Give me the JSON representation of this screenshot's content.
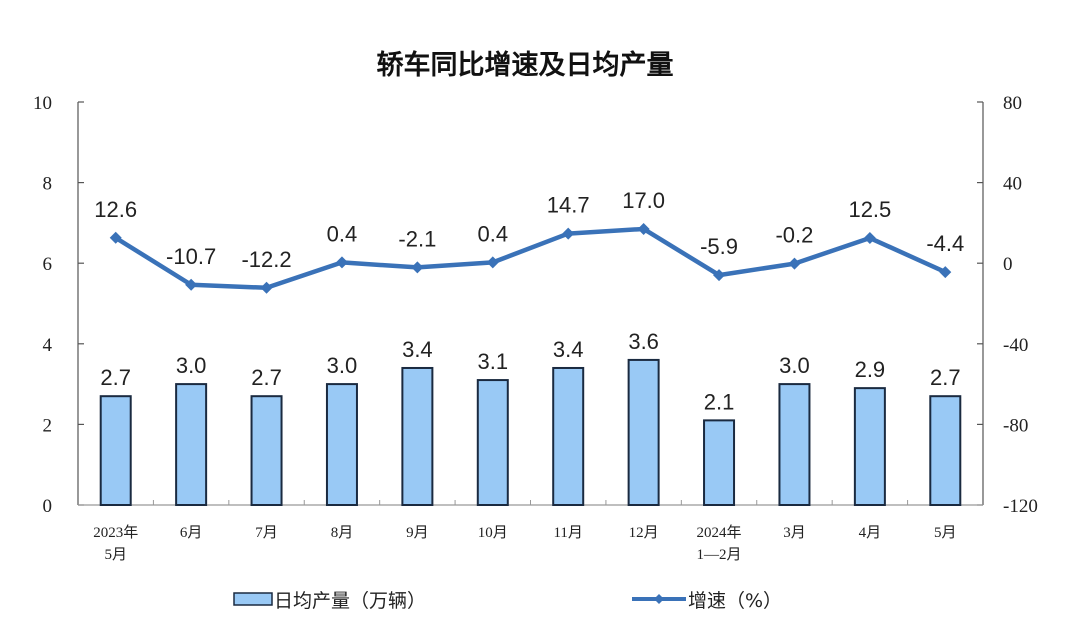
{
  "chart_data": {
    "type": "bar+line",
    "title": "轿车同比增速及日均产量",
    "categories": [
      "2023年\n5月",
      "6月",
      "7月",
      "8月",
      "9月",
      "10月",
      "11月",
      "12月",
      "2024年\n1—2月",
      "3月",
      "4月",
      "5月"
    ],
    "category_lines": [
      [
        "2023年",
        "5月"
      ],
      [
        "6月"
      ],
      [
        "7月"
      ],
      [
        "8月"
      ],
      [
        "9月"
      ],
      [
        "10月"
      ],
      [
        "11月"
      ],
      [
        "12月"
      ],
      [
        "2024年",
        "1—2月"
      ],
      [
        "3月"
      ],
      [
        "4月"
      ],
      [
        "5月"
      ]
    ],
    "series": [
      {
        "name": "日均产量（万辆）",
        "type": "bar",
        "axis": "left",
        "color": "#99c9f5",
        "border": "#1a2a40",
        "values": [
          2.7,
          3.0,
          2.7,
          3.0,
          3.4,
          3.1,
          3.4,
          3.6,
          2.1,
          3.0,
          2.9,
          2.7
        ]
      },
      {
        "name": "增速（%）",
        "type": "line",
        "axis": "right",
        "color": "#3a72b8",
        "marker": "diamond",
        "values": [
          12.6,
          -10.7,
          -12.2,
          0.4,
          -2.1,
          0.4,
          14.7,
          17.0,
          -5.9,
          -0.2,
          12.5,
          -4.4
        ]
      }
    ],
    "y_left": {
      "label": "",
      "min": 0,
      "max": 10,
      "ticks": [
        0,
        2,
        4,
        6,
        8,
        10
      ]
    },
    "y_right": {
      "label": "",
      "min": -120,
      "max": 80,
      "ticks": [
        -120,
        -80,
        -40,
        0,
        40,
        80
      ]
    },
    "xlabel": "",
    "grid": false,
    "legend_position": "bottom"
  },
  "legend": {
    "bar_label": "日均产量（万辆）",
    "line_label": "增速（%）"
  }
}
